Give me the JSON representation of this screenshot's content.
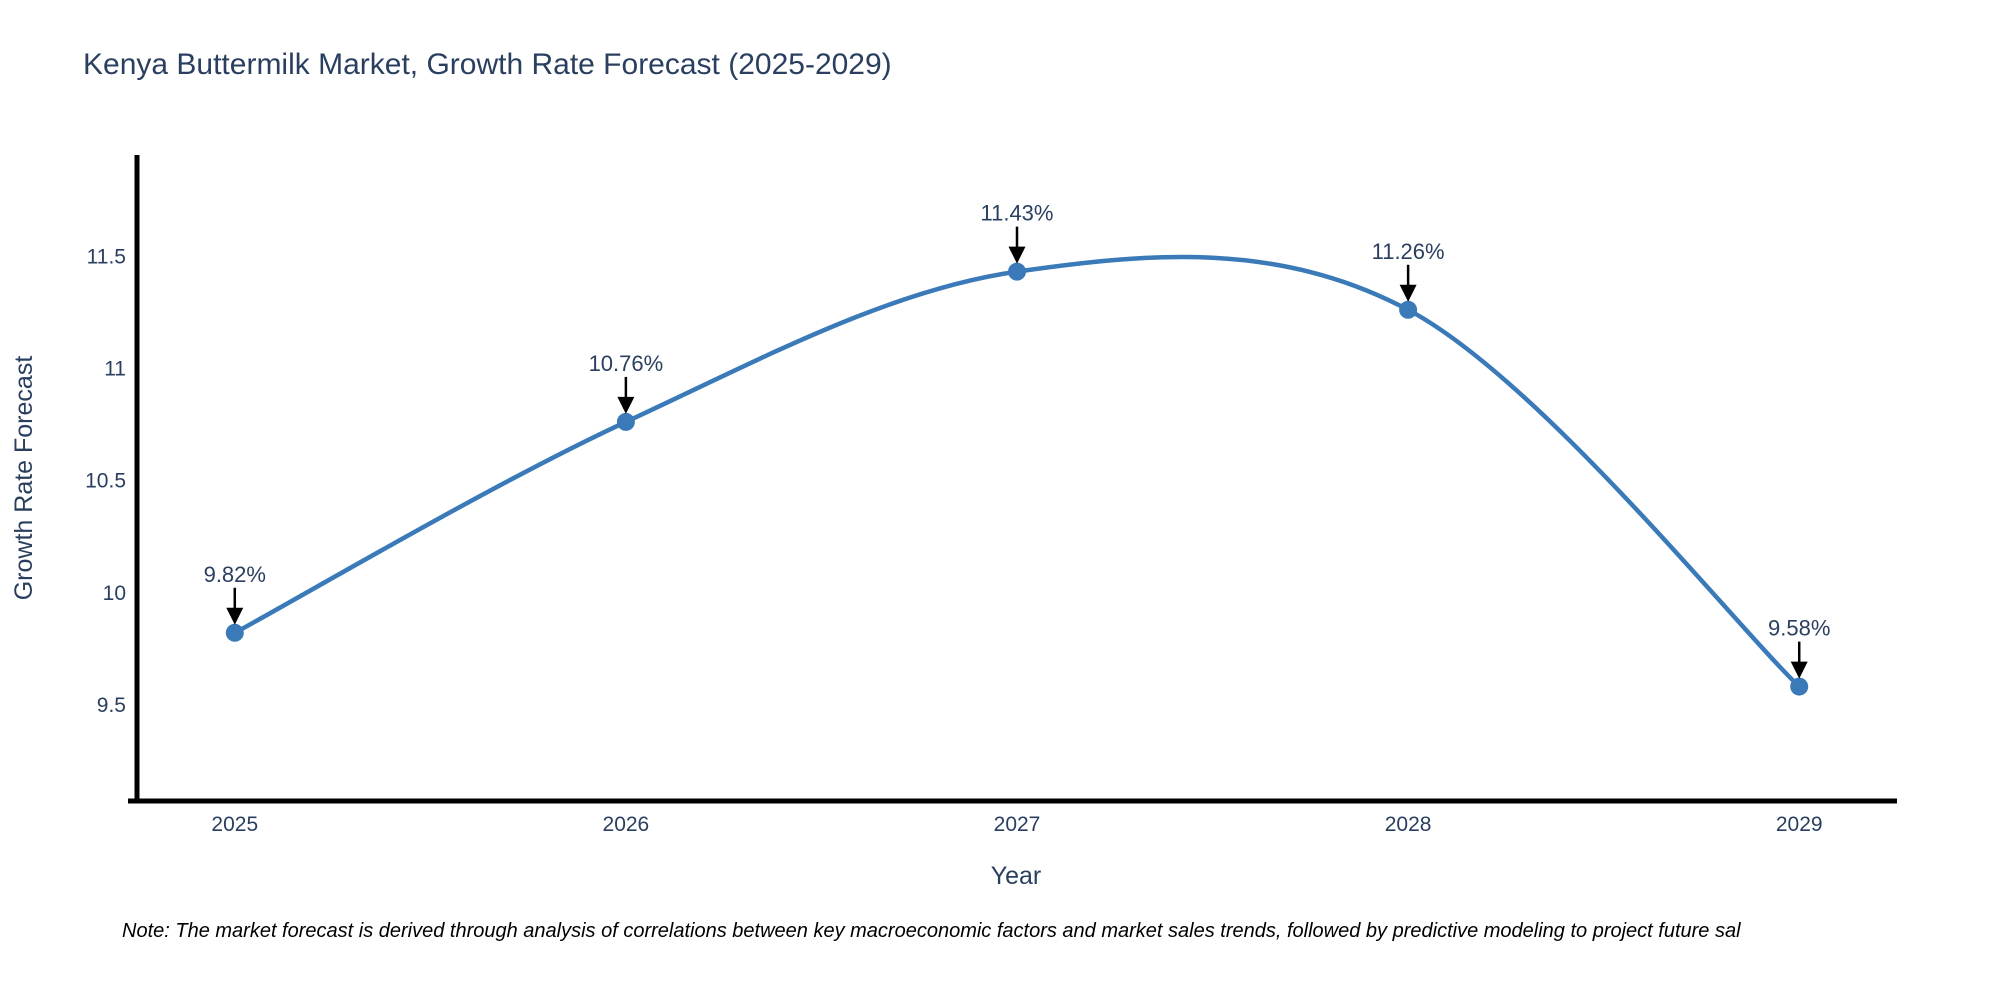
{
  "page": {
    "background": "#ffffff"
  },
  "chart_data": {
    "type": "line",
    "title": "Kenya Buttermilk Market, Growth Rate Forecast (2025-2029)",
    "xlabel": "Year",
    "ylabel": "Growth Rate Forecast",
    "x": [
      2025,
      2026,
      2027,
      2028,
      2029
    ],
    "values": [
      9.82,
      10.76,
      11.43,
      11.26,
      9.58
    ],
    "point_labels": [
      "9.82%",
      "10.76%",
      "11.43%",
      "11.26%",
      "9.58%"
    ],
    "x_tick_labels": [
      "2025",
      "2026",
      "2027",
      "2028",
      "2029"
    ],
    "y_ticks": [
      9.5,
      10,
      10.5,
      11,
      11.5
    ],
    "y_tick_labels": [
      "9.5",
      "10",
      "10.5",
      "11",
      "11.5"
    ],
    "x_range": [
      2024.75,
      2029.25
    ],
    "y_range": [
      9.07,
      11.95
    ],
    "grid": false,
    "legend": false,
    "line_shape": "spline",
    "line_color": "#3a7ab8",
    "marker_color": "#3a7ab8",
    "axis_line_color": "#000000",
    "annotation_arrow_color": "#000000",
    "text_color": "#2a3f5f"
  },
  "footnote": "Note: The market forecast is derived through analysis of correlations between key macroeconomic factors and market sales trends, followed by predictive modeling to project future sal"
}
